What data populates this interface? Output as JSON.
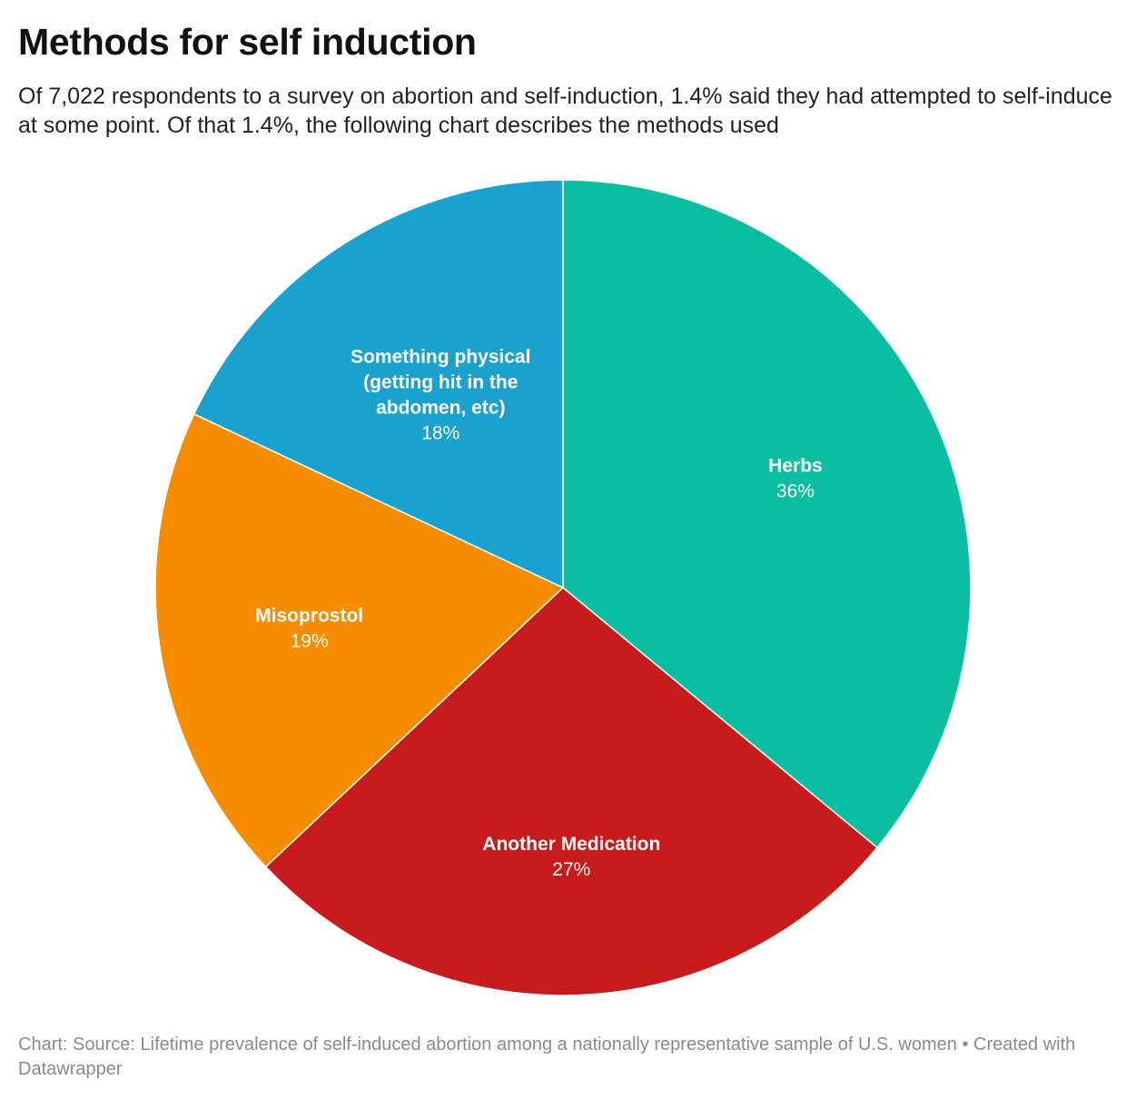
{
  "header": {
    "title": "Methods for self induction",
    "subtitle": "Of 7,022 respondents to a survey on abortion and self-induction, 1.4% said they had attempted to self-induce at some point. Of that 1.4%, the following chart describes the methods used"
  },
  "chart_data": {
    "type": "pie",
    "title": "Methods for self induction",
    "unit": "%",
    "slices": [
      {
        "name": "Herbs",
        "label_lines": [
          "Herbs"
        ],
        "value": 36,
        "value_label": "36%",
        "color": "#0bbda1"
      },
      {
        "name": "Another Medication",
        "label_lines": [
          "Another Medication"
        ],
        "value": 27,
        "value_label": "27%",
        "color": "#c71c1e"
      },
      {
        "name": "Misoprostol",
        "label_lines": [
          "Misoprostol"
        ],
        "value": 19,
        "value_label": "19%",
        "color": "#f78c00"
      },
      {
        "name": "Something physical (getting hit in the abdomen, etc)",
        "label_lines": [
          "Something physical",
          "(getting hit in the",
          "abdomen, etc)"
        ],
        "value": 18,
        "value_label": "18%",
        "color": "#1ba1cd"
      }
    ],
    "start": "12 o'clock",
    "direction": "clockwise"
  },
  "footer": {
    "source": "Chart: Source: Lifetime prevalence of self-induced abortion among a nationally representative sample of U.S. women • Created with Datawrapper"
  }
}
